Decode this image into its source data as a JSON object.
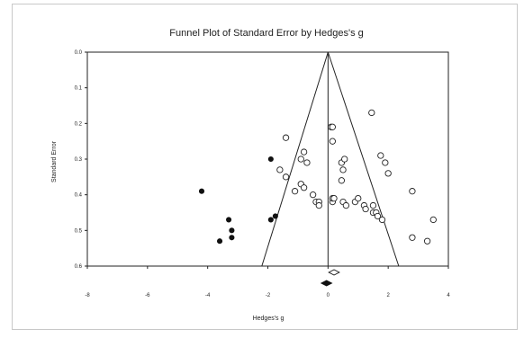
{
  "chart_data": {
    "type": "scatter",
    "title": "Funnel Plot of Standard Error by Hedges's g",
    "xlabel": "Hedges's g",
    "ylabel": "Standard Error",
    "xlim": [
      -8,
      4
    ],
    "ylim": [
      0.0,
      0.6
    ],
    "y_inverted": true,
    "x_ticks": [
      "-8",
      "-6",
      "-4",
      "-2",
      "0",
      "2",
      "4"
    ],
    "x_tick_values": [
      -8,
      -6,
      -4,
      -2,
      0,
      2,
      4
    ],
    "y_ticks": [
      "0.0",
      "0.1",
      "0.2",
      "0.3",
      "0.4",
      "0.5",
      "0.6"
    ],
    "y_tick_values": [
      0.0,
      0.1,
      0.2,
      0.3,
      0.4,
      0.5,
      0.6
    ],
    "grid": false,
    "funnel": {
      "center": 0.0,
      "apex_se": 0.0,
      "base_se": 0.6,
      "base_left": -2.2,
      "base_right": 2.35
    },
    "series": [
      {
        "marker": "open-circle",
        "color": "#222222",
        "x": [
          -1.4,
          -1.6,
          -1.4,
          -1.1,
          -0.8,
          -0.9,
          -0.7,
          -0.9,
          -0.8,
          -0.5,
          -0.4,
          -0.3,
          -0.3,
          0.15,
          0.15,
          0.2,
          0.45,
          0.5,
          0.45,
          0.5,
          0.6,
          0.9,
          1.0,
          1.2,
          1.25,
          1.5,
          1.5,
          1.6,
          1.65,
          1.8,
          1.9,
          2.0,
          2.8,
          2.8,
          3.3,
          3.5,
          1.75,
          1.45
        ],
        "y": [
          0.24,
          0.33,
          0.35,
          0.39,
          0.28,
          0.3,
          0.31,
          0.37,
          0.38,
          0.4,
          0.42,
          0.42,
          0.43,
          0.42,
          0.41,
          0.41,
          0.31,
          0.33,
          0.36,
          0.42,
          0.43,
          0.42,
          0.41,
          0.43,
          0.44,
          0.43,
          0.45,
          0.45,
          0.46,
          0.47,
          0.31,
          0.34,
          0.39,
          0.52,
          0.53,
          0.47,
          0.29,
          0.17
        ]
      },
      {
        "marker": "open-circle",
        "color": "#222222",
        "x": [
          0.1,
          0.15,
          0.15,
          0.55
        ],
        "y": [
          0.21,
          0.21,
          0.25,
          0.3
        ]
      },
      {
        "marker": "filled-circle",
        "color": "#111111",
        "x": [
          -4.2,
          -3.2,
          -1.9,
          -3.3,
          -1.9,
          -1.75,
          -3.6,
          -3.2
        ],
        "y": [
          0.39,
          0.5,
          0.3,
          0.47,
          0.47,
          0.46,
          0.53,
          0.52
        ]
      }
    ],
    "summary": [
      {
        "label": "",
        "marker": "open-diamond",
        "x": 0.2,
        "width": 0.35
      },
      {
        "label": "",
        "marker": "filled-diamond",
        "x": -0.05,
        "width": 0.35
      }
    ]
  }
}
